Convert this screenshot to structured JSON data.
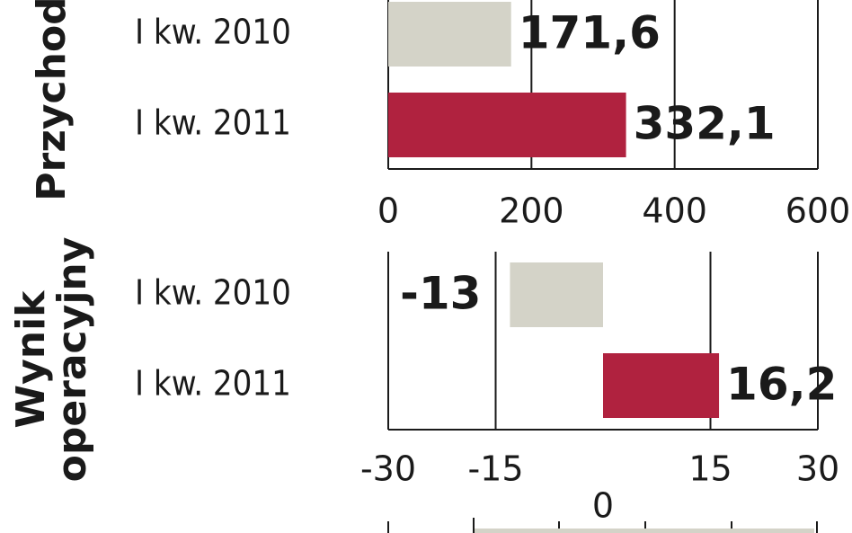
{
  "chart_data": [
    {
      "type": "bar",
      "orientation": "horizontal",
      "title": "Przychod",
      "categories": [
        "I kw. 2010",
        "I kw. 2011"
      ],
      "values": [
        171.6,
        332.1
      ],
      "value_labels": [
        "171,6",
        "332,1"
      ],
      "colors": [
        "#d4d3c8",
        "#b0223f"
      ],
      "xlim": [
        0,
        600
      ],
      "xticks": [
        0,
        200,
        400,
        600
      ],
      "grid": true
    },
    {
      "type": "bar",
      "orientation": "horizontal",
      "title": [
        "Wynik",
        "operacyjny"
      ],
      "categories": [
        "I kw. 2010",
        "I kw. 2011"
      ],
      "values": [
        -13,
        16.2
      ],
      "value_labels": [
        "-13",
        "16,2"
      ],
      "colors": [
        "#d4d3c8",
        "#b0223f"
      ],
      "xlim": [
        -30,
        30
      ],
      "xticks": [
        -30,
        -15,
        15,
        30
      ],
      "grid": true
    }
  ],
  "cropped_chart": {
    "tick_label": 0
  }
}
